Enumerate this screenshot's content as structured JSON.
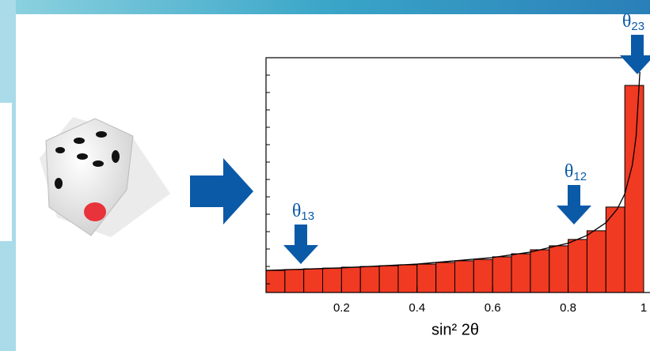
{
  "chart_data": {
    "type": "histogram",
    "xlabel": "sin² 2θ",
    "bins": [
      0,
      0.05,
      0.1,
      0.15,
      0.2,
      0.25,
      0.3,
      0.35,
      0.4,
      0.45,
      0.5,
      0.55,
      0.6,
      0.65,
      0.7,
      0.75,
      0.8,
      0.85,
      0.9,
      0.95,
      1
    ],
    "values": [
      9.4,
      9.8,
      10.1,
      10.4,
      10.8,
      11.1,
      11.4,
      11.8,
      12.1,
      12.8,
      13.5,
      14.1,
      15.2,
      16.5,
      18.2,
      19.9,
      22.6,
      26.3,
      36.4,
      88.2
    ],
    "color": "#f03a22",
    "curve": {
      "x": [
        0,
        0.2,
        0.4,
        0.6,
        0.7,
        0.8,
        0.85,
        0.9,
        0.93,
        0.95,
        0.97,
        0.98,
        0.99
      ],
      "values": [
        9.4,
        10.5,
        12.1,
        14.9,
        17.2,
        21.0,
        24.3,
        29.7,
        35.5,
        42.0,
        54.3,
        66.5,
        94
      ],
      "color": "#000000"
    },
    "xlim": [
      0,
      1
    ],
    "ylim": [
      0,
      100
    ],
    "xticks": [
      0.2,
      0.4,
      0.6,
      0.8,
      1
    ],
    "annotations": [
      {
        "text": "θ",
        "sub": "13"
      },
      {
        "text": "θ",
        "sub": "12"
      },
      {
        "text": "θ",
        "sub": "23"
      }
    ],
    "annotation_color": "#0b5aa8"
  }
}
